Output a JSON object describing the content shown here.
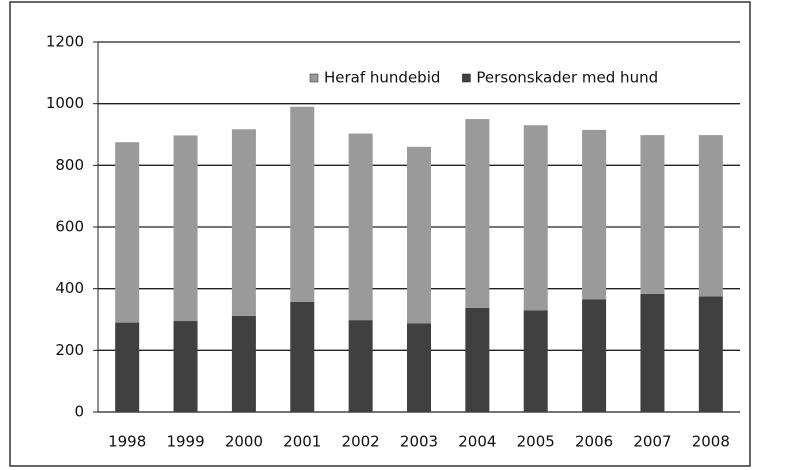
{
  "chart_data": {
    "type": "stacked_bar",
    "categories": [
      "1998",
      "1999",
      "2000",
      "2001",
      "2002",
      "2003",
      "2004",
      "2005",
      "2006",
      "2007",
      "2008"
    ],
    "series": [
      {
        "name": "Personskader med hund",
        "color": "#404040",
        "values": [
          290,
          295,
          312,
          357,
          298,
          287,
          338,
          330,
          365,
          383,
          375
        ]
      },
      {
        "name": "Heraf hundebid",
        "color": "#9a9a9a",
        "values": [
          585,
          602,
          605,
          633,
          605,
          573,
          612,
          600,
          550,
          515,
          523
        ]
      }
    ],
    "legend_order": [
      1,
      0
    ],
    "legend": "top-right",
    "ylim": [
      0,
      1200
    ],
    "yticks": [
      0,
      200,
      400,
      600,
      800,
      1000,
      1200
    ],
    "grid": true
  }
}
